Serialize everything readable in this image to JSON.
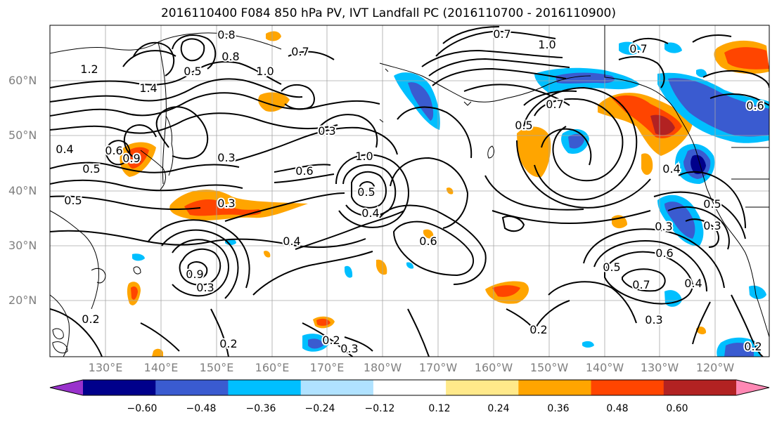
{
  "title": "2016110400 F084 850 hPa PV, IVT Landfall PC (2016110700 - 2016110900)",
  "lat_labels": [
    "60°N",
    "50°N",
    "40°N",
    "30°N",
    "20°N"
  ],
  "lon_labels": [
    "130°E",
    "140°E",
    "150°E",
    "160°E",
    "170°E",
    "180°W",
    "170°W",
    "160°W",
    "150°W",
    "140°W",
    "130°W",
    "120°W"
  ],
  "colorbar": {
    "ticks": [
      "−0.60",
      "−0.48",
      "−0.36",
      "−0.24",
      "−0.12",
      "0.12",
      "0.24",
      "0.36",
      "0.48",
      "0.60"
    ],
    "colors": [
      "#9932CC",
      "#00008B",
      "#3A5BD0",
      "#00BFFF",
      "#B0E2FF",
      "#FFFFFF",
      "#FFE98A",
      "#FFA500",
      "#FF4500",
      "#B22222",
      "#FF88B4"
    ]
  },
  "contour_labels": [
    "0.8",
    "0.8",
    "0.7",
    "0.5",
    "1.0",
    "1.2",
    "1.4",
    "0.4",
    "0.5",
    "0.6",
    "0.5",
    "0.3",
    "0.3",
    "0.6",
    "1.0",
    "0.5",
    "0.4",
    "0.6",
    "0.9",
    "0.3",
    "0.4",
    "0.3",
    "0.2",
    "0.2",
    "0.3",
    "0.2",
    "0.7",
    "1.0",
    "0.7",
    "0.5",
    "0.7",
    "0.6",
    "0.4",
    "0.5",
    "0.3",
    "0.3",
    "0.6",
    "0.5",
    "0.7",
    "0.4",
    "0.3",
    "0.2",
    "0.2",
    "0.9"
  ]
}
